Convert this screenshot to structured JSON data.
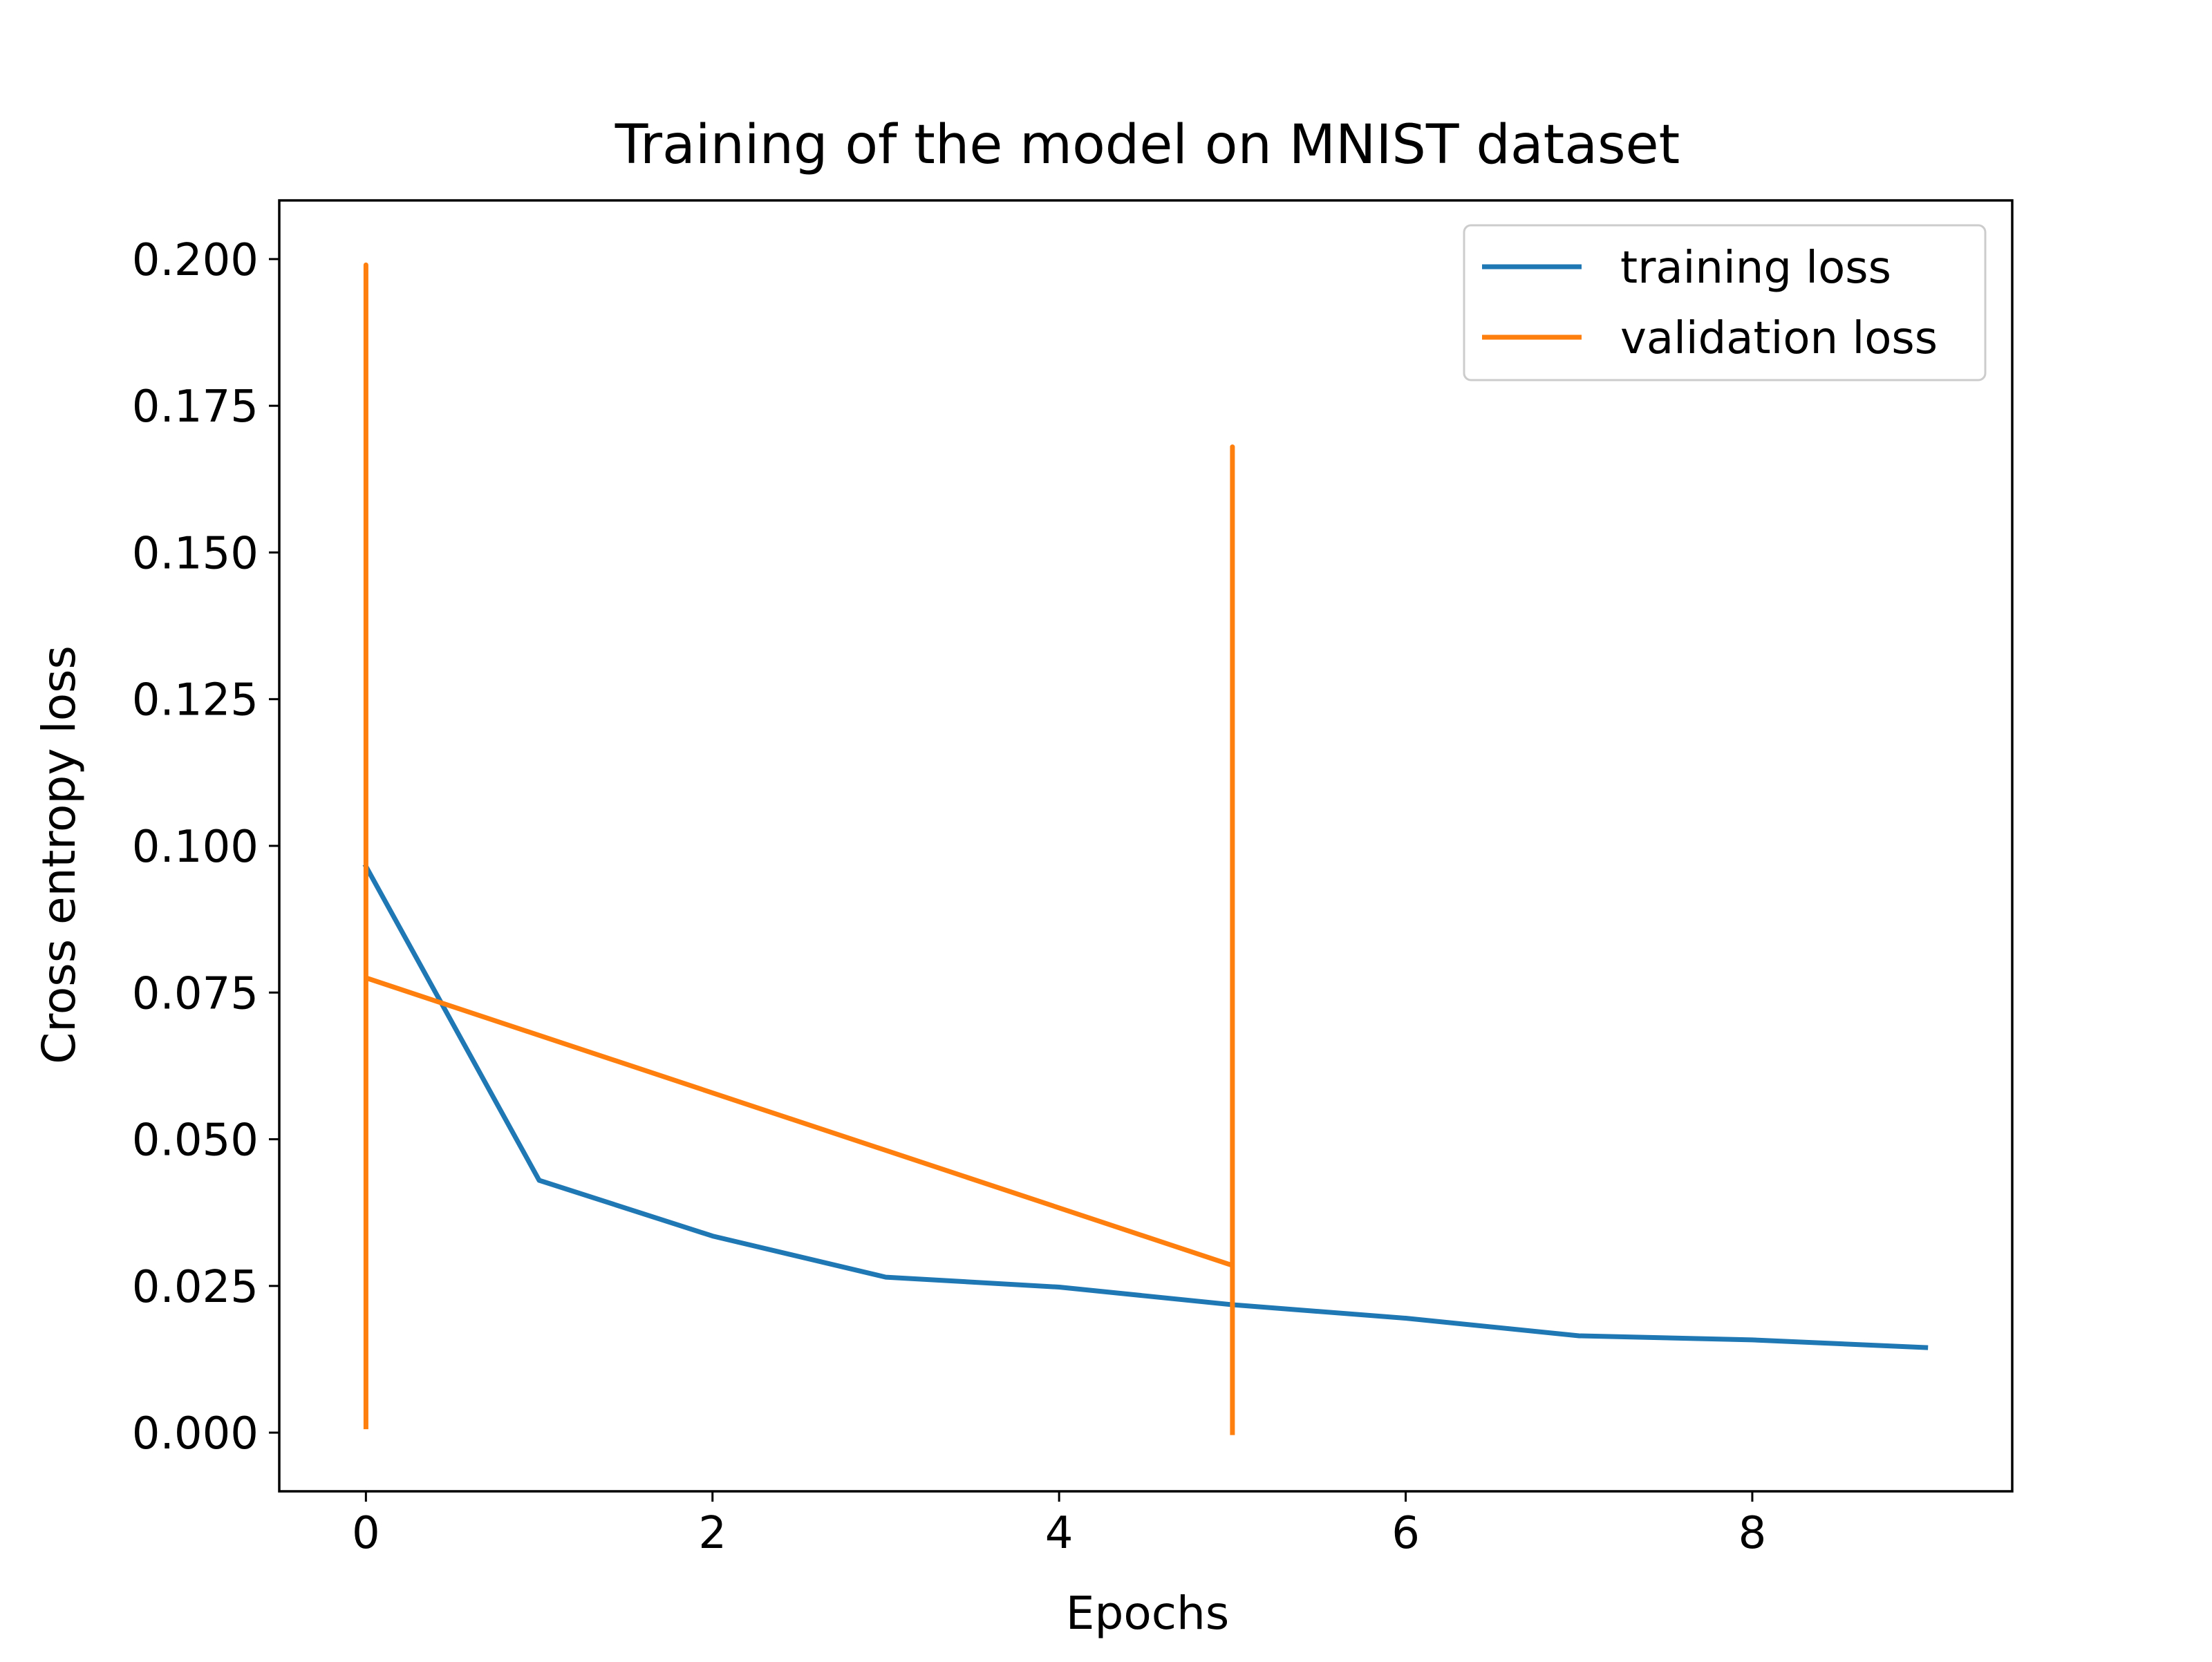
{
  "chart_data": {
    "type": "line",
    "title": "Training of the model on MNIST dataset",
    "xlabel": "Epochs",
    "ylabel": "Cross entropy loss",
    "xlim": [
      -0.5,
      9.5
    ],
    "ylim": [
      -0.01,
      0.21
    ],
    "xticks": [
      0,
      2,
      4,
      6,
      8
    ],
    "xtick_labels": [
      "0",
      "2",
      "4",
      "6",
      "8"
    ],
    "yticks": [
      0.0,
      0.025,
      0.05,
      0.075,
      0.1,
      0.125,
      0.15,
      0.175,
      0.2
    ],
    "ytick_labels": [
      "0.000",
      "0.025",
      "0.050",
      "0.075",
      "0.100",
      "0.125",
      "0.150",
      "0.175",
      "0.200"
    ],
    "grid": false,
    "legend_position": "top-right",
    "series": [
      {
        "name": "training loss",
        "color": "#1f77b4",
        "points": [
          [
            0,
            0.0965
          ],
          [
            1,
            0.043
          ],
          [
            2,
            0.0335
          ],
          [
            3,
            0.0265
          ],
          [
            4,
            0.0248
          ],
          [
            5,
            0.0218
          ],
          [
            6,
            0.0195
          ],
          [
            7,
            0.0165
          ],
          [
            8,
            0.0158
          ],
          [
            9,
            0.0145
          ]
        ]
      },
      {
        "name": "validation loss",
        "color": "#ff7f0e",
        "points": [
          [
            0,
            0.001
          ],
          [
            0,
            0.199
          ],
          [
            0,
            0.0775
          ],
          [
            5,
            0.0285
          ],
          [
            5,
            0.168
          ],
          [
            5,
            0.0
          ]
        ]
      }
    ]
  }
}
